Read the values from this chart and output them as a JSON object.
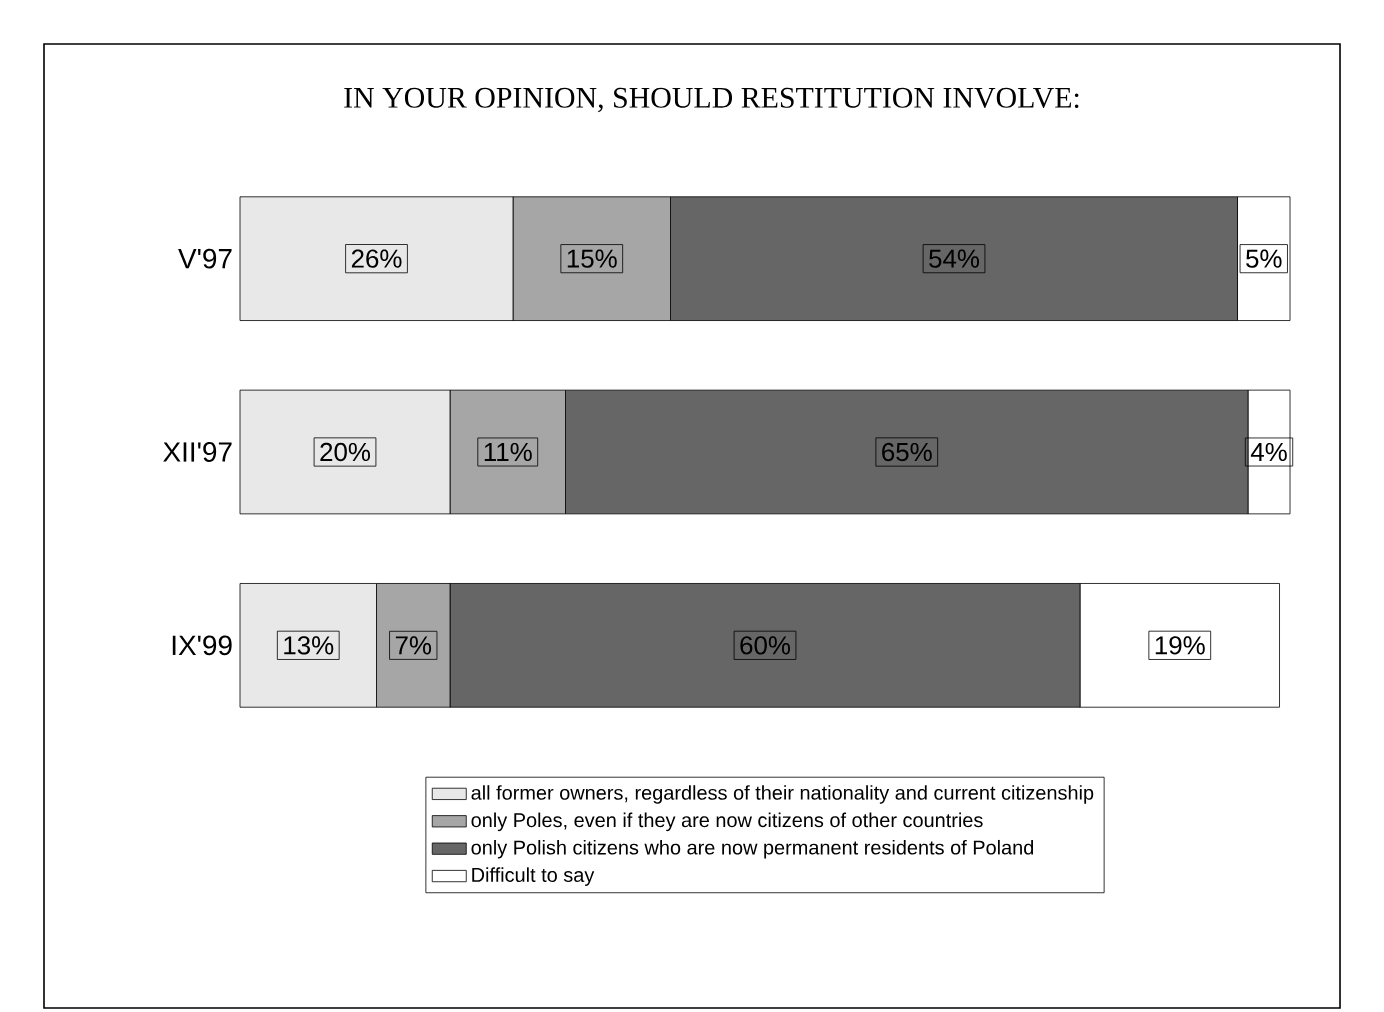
{
  "chart_data": {
    "type": "bar",
    "orientation": "horizontal",
    "stacked": true,
    "title": "IN YOUR OPINION, SHOULD RESTITUTION INVOLVE:",
    "categories": [
      "V'97",
      "XII'97",
      "IX'99"
    ],
    "series": [
      {
        "name": "all former owners, regardless of their nationality and current citizenship",
        "color": "#e8e8e8",
        "values": [
          26,
          20,
          13
        ],
        "value_labels": [
          "26%",
          "20%",
          "13%"
        ]
      },
      {
        "name": "only Poles, even if they are now citizens of other countries",
        "color": "#a6a6a6",
        "values": [
          15,
          11,
          7
        ],
        "value_labels": [
          "15%",
          "11%",
          "7%"
        ]
      },
      {
        "name": "only Polish citizens who are now permanent residents of Poland",
        "color": "#666666",
        "values": [
          54,
          65,
          60
        ],
        "value_labels": [
          "54%",
          "65%",
          "60%"
        ]
      },
      {
        "name": "Difficult to say",
        "color": "#ffffff",
        "values": [
          5,
          4,
          19
        ],
        "value_labels": [
          "5%",
          "4%",
          "19%"
        ]
      }
    ],
    "legend": "bottom"
  }
}
